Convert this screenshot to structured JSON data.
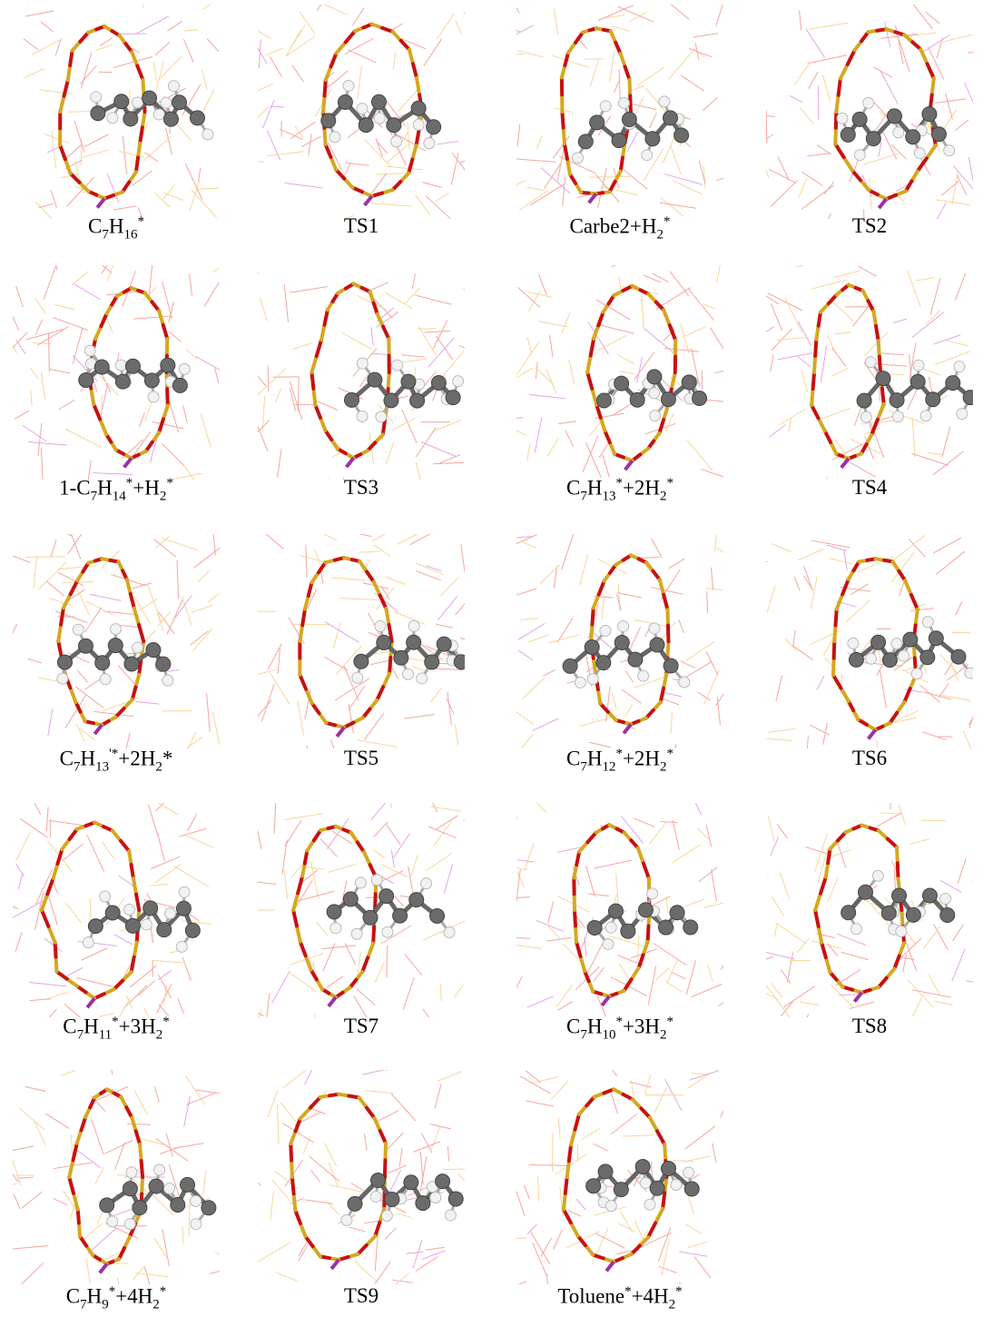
{
  "panels": [
    {
      "caption": [
        {
          "text": "C"
        },
        {
          "sub": "7"
        },
        {
          "text": "H"
        },
        {
          "sub": "16"
        },
        {
          "sup": "*"
        }
      ]
    },
    {
      "caption": [
        {
          "text": "TS1"
        }
      ]
    },
    {
      "caption": [
        {
          "text": "Carbe2+H"
        },
        {
          "sub": "2"
        },
        {
          "sup": "*"
        }
      ]
    },
    {
      "caption": [
        {
          "text": "TS2"
        }
      ]
    },
    {
      "caption": [
        {
          "text": "1-C"
        },
        {
          "sub": "7"
        },
        {
          "text": "H"
        },
        {
          "sub": "14"
        },
        {
          "sup": "*"
        },
        {
          "text": "+H"
        },
        {
          "sub": "2"
        },
        {
          "sup": "*"
        }
      ]
    },
    {
      "caption": [
        {
          "text": "TS3"
        }
      ]
    },
    {
      "caption": [
        {
          "text": "C"
        },
        {
          "sub": "7"
        },
        {
          "text": "H"
        },
        {
          "sub": "13"
        },
        {
          "sup": "*"
        },
        {
          "text": "+2H"
        },
        {
          "sub": "2"
        },
        {
          "sup": "*"
        }
      ]
    },
    {
      "caption": [
        {
          "text": "TS4"
        }
      ]
    },
    {
      "caption": [
        {
          "text": "C"
        },
        {
          "sub": "7"
        },
        {
          "text": "H"
        },
        {
          "sub": "13"
        },
        {
          "sup": "'*"
        },
        {
          "text": "+2H"
        },
        {
          "sub": "2"
        },
        {
          "text": "*"
        }
      ]
    },
    {
      "caption": [
        {
          "text": "TS5"
        }
      ]
    },
    {
      "caption": [
        {
          "text": "C"
        },
        {
          "sub": "7"
        },
        {
          "text": "H"
        },
        {
          "sub": "12"
        },
        {
          "sup": "*"
        },
        {
          "text": "+2H"
        },
        {
          "sub": "2"
        },
        {
          "sup": "*"
        }
      ]
    },
    {
      "caption": [
        {
          "text": "TS6"
        }
      ]
    },
    {
      "caption": [
        {
          "text": "C"
        },
        {
          "sub": "7"
        },
        {
          "text": "H"
        },
        {
          "sub": "11"
        },
        {
          "sup": "*"
        },
        {
          "text": "+3H"
        },
        {
          "sub": "2"
        },
        {
          "sup": "*"
        }
      ]
    },
    {
      "caption": [
        {
          "text": "TS7"
        }
      ]
    },
    {
      "caption": [
        {
          "text": "C"
        },
        {
          "sub": "7"
        },
        {
          "text": "H"
        },
        {
          "sub": "10"
        },
        {
          "sup": "*"
        },
        {
          "text": "+3H"
        },
        {
          "sub": "2"
        },
        {
          "sup": "*"
        }
      ]
    },
    {
      "caption": [
        {
          "text": "TS8"
        }
      ]
    },
    {
      "caption": [
        {
          "text": "C"
        },
        {
          "sub": "7"
        },
        {
          "text": "H"
        },
        {
          "sub": "9"
        },
        {
          "sup": "*"
        },
        {
          "text": "+4H"
        },
        {
          "sub": "2"
        },
        {
          "sup": "*"
        }
      ]
    },
    {
      "caption": [
        {
          "text": "TS9"
        }
      ]
    },
    {
      "caption": [
        {
          "text": "Toluene"
        },
        {
          "sup": "*"
        },
        {
          "text": "+4H"
        },
        {
          "sub": "2"
        },
        {
          "sup": "*"
        }
      ]
    }
  ]
}
